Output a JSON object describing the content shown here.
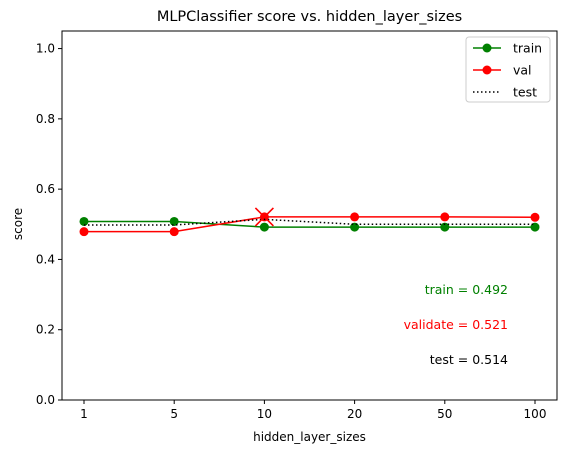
{
  "chart_data": {
    "type": "line",
    "title": "MLPClassifier score vs. hidden_layer_sizes",
    "xlabel": "hidden_layer_sizes",
    "ylabel": "score",
    "categories": [
      "1",
      "5",
      "10",
      "20",
      "50",
      "100"
    ],
    "ylim": [
      0.0,
      1.05
    ],
    "yticks": [
      "0.0",
      "0.2",
      "0.4",
      "0.6",
      "0.8",
      "1.0"
    ],
    "ytick_values": [
      0.0,
      0.2,
      0.4,
      0.6,
      0.8,
      1.0
    ],
    "grid": false,
    "legend_position": "top-right",
    "series": [
      {
        "name": "train",
        "color": "#008000",
        "style": "solid",
        "marker": "circle",
        "values": [
          0.508,
          0.508,
          0.492,
          0.492,
          0.492,
          0.492
        ]
      },
      {
        "name": "val",
        "color": "#ff0000",
        "style": "solid",
        "marker": "circle",
        "values": [
          0.479,
          0.479,
          0.521,
          0.521,
          0.521,
          0.52
        ]
      },
      {
        "name": "test",
        "color": "#000000",
        "style": "dotted",
        "marker": "none",
        "values": [
          0.498,
          0.498,
          0.514,
          0.5,
          0.5,
          0.5
        ]
      }
    ],
    "best_marker": {
      "category": "10",
      "value": 0.521,
      "color": "#ff0000",
      "symbol": "x"
    },
    "annotations": [
      {
        "text": "train = 0.492",
        "color": "#008000"
      },
      {
        "text": "validate = 0.521",
        "color": "#ff0000"
      },
      {
        "text": "test = 0.514",
        "color": "#000000"
      }
    ]
  }
}
